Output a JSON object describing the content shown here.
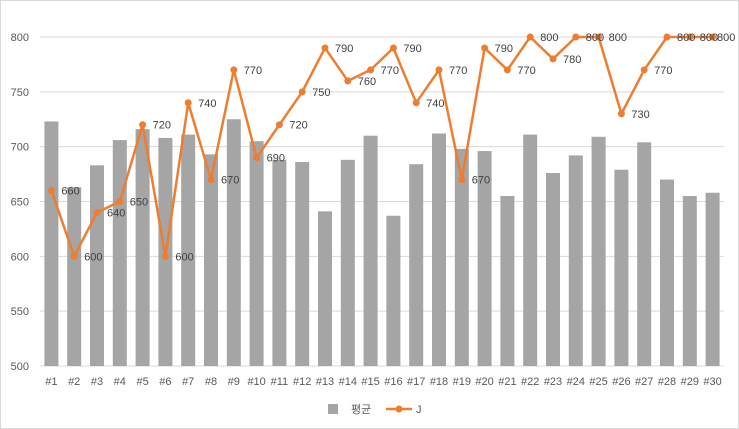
{
  "chart_data": {
    "type": "bar",
    "categories": [
      "#1",
      "#2",
      "#3",
      "#4",
      "#5",
      "#6",
      "#7",
      "#8",
      "#9",
      "#10",
      "#11",
      "#12",
      "#13",
      "#14",
      "#15",
      "#16",
      "#17",
      "#18",
      "#19",
      "#20",
      "#21",
      "#22",
      "#23",
      "#24",
      "#25",
      "#26",
      "#27",
      "#28",
      "#29",
      "#30"
    ],
    "series": [
      {
        "name": "평균",
        "type": "bar",
        "color": "#A5A5A5",
        "values": [
          723,
          663,
          683,
          706,
          716,
          708,
          711,
          693,
          725,
          705,
          688,
          686,
          641,
          688,
          710,
          637,
          684,
          712,
          698,
          696,
          655,
          711,
          676,
          692,
          709,
          679,
          704,
          670,
          655,
          658
        ]
      },
      {
        "name": "J",
        "type": "line",
        "color": "#ED7D31",
        "data_labels": true,
        "values": [
          660,
          600,
          640,
          650,
          720,
          600,
          740,
          670,
          770,
          690,
          720,
          750,
          790,
          760,
          770,
          790,
          740,
          770,
          670,
          790,
          770,
          800,
          780,
          800,
          800,
          730,
          770,
          800,
          800,
          800
        ]
      }
    ],
    "ylim": [
      500,
      800
    ],
    "yticks": [
      500,
      550,
      600,
      650,
      700,
      750,
      800
    ],
    "grid": true,
    "legend": "bottom"
  }
}
